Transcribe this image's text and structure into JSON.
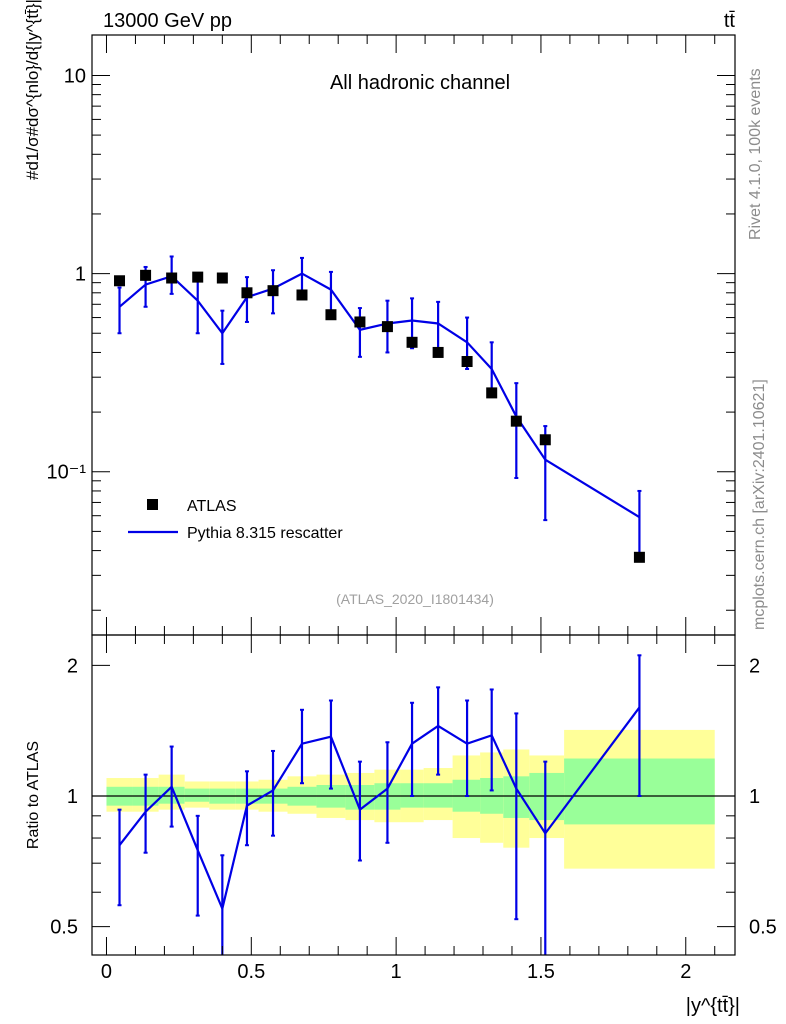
{
  "header": {
    "energy_label": "13000 GeV pp",
    "process_label": "tt̄"
  },
  "side": {
    "rivet_label": "Rivet 4.1.0,  100k events",
    "source_label": "mcplots.cern.ch [arXiv:2401.10621]"
  },
  "colors": {
    "mc": "#0000e6",
    "data": "#000000",
    "band_inner": "#99ff99",
    "band_outer": "#ffff99",
    "ref_label": "#a0a0a0"
  },
  "chart_data": [
    {
      "type": "scatter",
      "panel": "main",
      "title": "All hadronic channel",
      "analysis_label": "(ATLAS_2020_I1801434)",
      "ylabel": "#d1/σ#dσ^{nlo}/d{|y^{tt̄}|}",
      "yscale": "log",
      "ylim": [
        0.015,
        16
      ],
      "xlim": [
        -0.05,
        2.17
      ],
      "y_ticks": [
        {
          "value": 10,
          "label": "10"
        },
        {
          "value": 1,
          "label": "1"
        },
        {
          "value": 0.1,
          "label": "10⁻¹"
        }
      ],
      "legend": {
        "position": "bottom-left",
        "entries": [
          "ATLAS",
          "Pythia 8.315 rescatter"
        ]
      },
      "series": [
        {
          "name": "ATLAS",
          "kind": "markers",
          "x": [
            0.045,
            0.135,
            0.225,
            0.315,
            0.4,
            0.485,
            0.575,
            0.675,
            0.775,
            0.875,
            0.97,
            1.055,
            1.145,
            1.245,
            1.33,
            1.415,
            1.515,
            1.84
          ],
          "y": [
            0.92,
            0.98,
            0.95,
            0.96,
            0.95,
            0.8,
            0.82,
            0.78,
            0.62,
            0.57,
            0.54,
            0.45,
            0.4,
            0.36,
            0.25,
            0.18,
            0.145,
            0.037
          ]
        },
        {
          "name": "Pythia 8.315 rescatter",
          "kind": "line",
          "x": [
            0.045,
            0.135,
            0.225,
            0.315,
            0.4,
            0.485,
            0.575,
            0.675,
            0.775,
            0.875,
            0.97,
            1.055,
            1.145,
            1.245,
            1.33,
            1.415,
            1.515,
            1.84
          ],
          "y": [
            0.68,
            0.88,
            0.97,
            0.73,
            0.5,
            0.76,
            0.84,
            1.0,
            0.83,
            0.52,
            0.56,
            0.58,
            0.56,
            0.45,
            0.33,
            0.19,
            0.115,
            0.059
          ],
          "yerr_low": [
            0.5,
            0.68,
            0.79,
            0.5,
            0.35,
            0.57,
            0.63,
            0.81,
            0.63,
            0.38,
            0.4,
            0.42,
            0.4,
            0.33,
            0.24,
            0.093,
            0.057,
            0.037
          ],
          "yerr_high": [
            0.85,
            1.08,
            1.22,
            0.96,
            0.65,
            0.96,
            1.04,
            1.2,
            1.02,
            0.67,
            0.73,
            0.75,
            0.72,
            0.6,
            0.45,
            0.28,
            0.17,
            0.08
          ]
        }
      ]
    },
    {
      "type": "line",
      "panel": "ratio",
      "ylabel": "Ratio to ATLAS",
      "xlabel": "|y^{tt̄}|",
      "yscale": "log",
      "ylim": [
        0.43,
        2.35
      ],
      "xlim": [
        -0.05,
        2.17
      ],
      "x_ticks": [
        {
          "value": 0,
          "label": "0"
        },
        {
          "value": 0.5,
          "label": "0.5"
        },
        {
          "value": 1,
          "label": "1"
        },
        {
          "value": 1.5,
          "label": "1.5"
        },
        {
          "value": 2,
          "label": "2"
        }
      ],
      "y_ticks": [
        {
          "value": 2,
          "label": "2"
        },
        {
          "value": 1,
          "label": "1"
        },
        {
          "value": 0.5,
          "label": "0.5"
        }
      ],
      "bands": {
        "edges": [
          0,
          0.09,
          0.18,
          0.27,
          0.355,
          0.445,
          0.525,
          0.625,
          0.725,
          0.825,
          0.925,
          1.015,
          1.095,
          1.195,
          1.29,
          1.37,
          1.46,
          1.58,
          2.1
        ],
        "inner_low": [
          0.95,
          0.95,
          0.96,
          0.97,
          0.96,
          0.96,
          0.96,
          0.95,
          0.94,
          0.93,
          0.93,
          0.94,
          0.94,
          0.92,
          0.91,
          0.89,
          0.88,
          0.86
        ],
        "inner_high": [
          1.05,
          1.05,
          1.05,
          1.04,
          1.04,
          1.04,
          1.04,
          1.05,
          1.06,
          1.06,
          1.07,
          1.07,
          1.07,
          1.09,
          1.1,
          1.11,
          1.13,
          1.22
        ],
        "outer_low": [
          0.92,
          0.92,
          0.93,
          0.94,
          0.93,
          0.93,
          0.92,
          0.91,
          0.89,
          0.88,
          0.87,
          0.87,
          0.88,
          0.8,
          0.78,
          0.76,
          0.8,
          0.68
        ],
        "outer_high": [
          1.1,
          1.1,
          1.12,
          1.08,
          1.08,
          1.08,
          1.09,
          1.11,
          1.12,
          1.13,
          1.15,
          1.15,
          1.16,
          1.24,
          1.26,
          1.28,
          1.24,
          1.42
        ]
      },
      "series": [
        {
          "name": "Pythia 8.315 rescatter / ATLAS",
          "x": [
            0.045,
            0.135,
            0.225,
            0.315,
            0.4,
            0.485,
            0.575,
            0.675,
            0.775,
            0.875,
            0.97,
            1.055,
            1.145,
            1.245,
            1.33,
            1.415,
            1.515,
            1.84
          ],
          "y": [
            0.77,
            0.92,
            1.05,
            0.75,
            0.55,
            0.95,
            1.03,
            1.32,
            1.37,
            0.93,
            1.04,
            1.32,
            1.45,
            1.32,
            1.38,
            1.04,
            0.82,
            1.6
          ],
          "yerr_low": [
            0.56,
            0.74,
            0.85,
            0.53,
            0.37,
            0.77,
            0.81,
            1.07,
            1.04,
            0.71,
            0.78,
            1.0,
            1.12,
            1.0,
            1.03,
            0.52,
            0.38,
            1.0
          ],
          "yerr_high": [
            0.93,
            1.12,
            1.3,
            0.9,
            0.73,
            1.14,
            1.27,
            1.58,
            1.66,
            1.2,
            1.33,
            1.64,
            1.78,
            1.66,
            1.76,
            1.55,
            1.2,
            2.11
          ]
        }
      ]
    }
  ]
}
